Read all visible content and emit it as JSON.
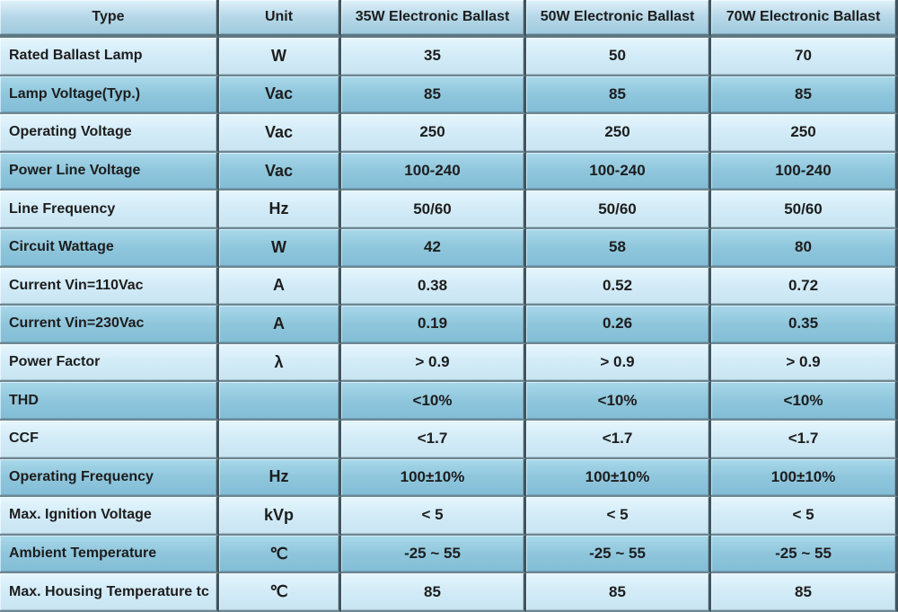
{
  "table": {
    "headers": [
      "Type",
      "Unit",
      "35W Electronic Ballast",
      "50W Electronic Ballast",
      "70W Electronic Ballast"
    ],
    "rows": [
      [
        "Rated Ballast Lamp",
        "W",
        "35",
        "50",
        "70"
      ],
      [
        "Lamp Voltage(Typ.)",
        "Vac",
        "85",
        "85",
        "85"
      ],
      [
        "Operating Voltage",
        "Vac",
        "250",
        "250",
        "250"
      ],
      [
        "Power Line Voltage",
        "Vac",
        "100-240",
        "100-240",
        "100-240"
      ],
      [
        "Line Frequency",
        "Hz",
        "50/60",
        "50/60",
        "50/60"
      ],
      [
        "Circuit Wattage",
        "W",
        "42",
        "58",
        "80"
      ],
      [
        "Current Vin=110Vac",
        "A",
        "0.38",
        "0.52",
        "0.72"
      ],
      [
        "Current Vin=230Vac",
        "A",
        "0.19",
        "0.26",
        "0.35"
      ],
      [
        "Power Factor",
        "λ",
        "> 0.9",
        "> 0.9",
        "> 0.9"
      ],
      [
        "THD",
        "",
        "<10%",
        "<10%",
        "<10%"
      ],
      [
        "CCF",
        "",
        "<1.7",
        "<1.7",
        "<1.7"
      ],
      [
        "Operating Frequency",
        "Hz",
        "100±10%",
        "100±10%",
        "100±10%"
      ],
      [
        "Max. Ignition Voltage",
        "kVp",
        "< 5",
        "< 5",
        "< 5"
      ],
      [
        "Ambient Temperature",
        "℃",
        "-25 ~ 55",
        "-25 ~ 55",
        "-25 ~ 55"
      ],
      [
        "Max. Housing Temperature tc",
        "℃",
        "85",
        "85",
        "85"
      ]
    ]
  }
}
